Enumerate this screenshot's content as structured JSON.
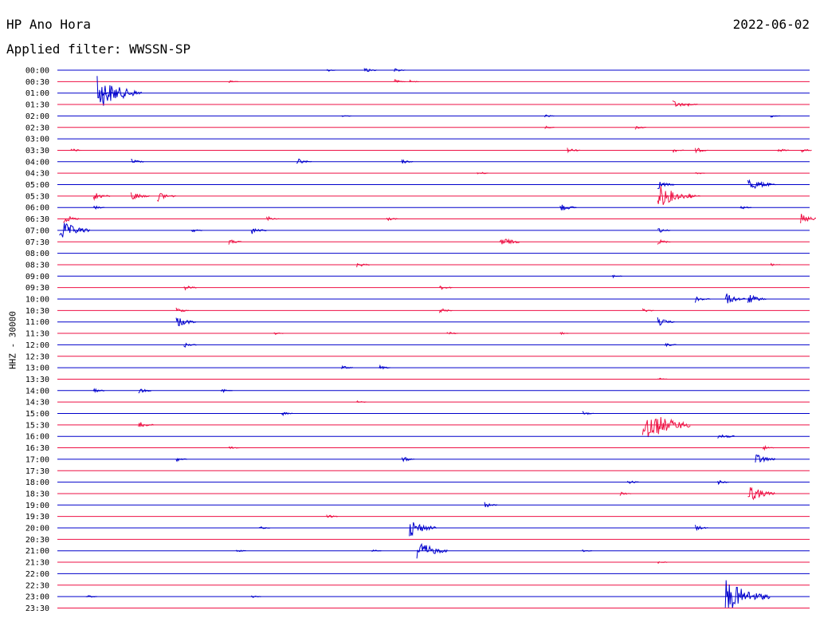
{
  "header": {
    "station": "HP Ano Hora",
    "date": "2022-06-02",
    "filter": "Applied filter: WWSSN-SP",
    "channel": "HHZ - 30000"
  },
  "colors": {
    "even_trace": "#0000cc",
    "odd_trace": "#ee1144"
  },
  "chart_data": {
    "type": "helicorder",
    "title": "HP Ano Hora",
    "date": "2022-06-02",
    "filter": "WWSSN-SP",
    "channel": "HHZ - 30000",
    "row_minutes": 30,
    "traces": [
      {
        "label": "00:00",
        "events": [
          [
            0.36,
            2
          ],
          [
            0.41,
            4
          ],
          [
            0.45,
            3
          ]
        ]
      },
      {
        "label": "00:30",
        "events": [
          [
            0.23,
            2
          ],
          [
            0.45,
            3
          ],
          [
            0.47,
            2
          ]
        ]
      },
      {
        "label": "01:00",
        "events": [
          [
            0.055,
            22
          ],
          [
            0.06,
            4
          ]
        ]
      },
      {
        "label": "01:30",
        "events": [
          [
            0.82,
            6
          ],
          [
            0.84,
            3
          ]
        ]
      },
      {
        "label": "02:00",
        "events": [
          [
            0.38,
            2
          ],
          [
            0.65,
            2
          ],
          [
            0.95,
            2
          ]
        ]
      },
      {
        "label": "02:30",
        "events": [
          [
            0.65,
            2
          ],
          [
            0.77,
            3
          ]
        ]
      },
      {
        "label": "03:00",
        "events": []
      },
      {
        "label": "03:30",
        "events": [
          [
            0.02,
            3
          ],
          [
            0.68,
            4
          ],
          [
            0.82,
            3
          ],
          [
            0.85,
            4
          ],
          [
            0.96,
            3
          ],
          [
            0.99,
            3
          ]
        ]
      },
      {
        "label": "04:00",
        "events": [
          [
            0.1,
            4
          ],
          [
            0.32,
            5
          ],
          [
            0.46,
            3
          ]
        ]
      },
      {
        "label": "04:30",
        "events": [
          [
            0.56,
            3
          ],
          [
            0.85,
            2
          ]
        ]
      },
      {
        "label": "05:00",
        "events": [
          [
            0.8,
            6
          ],
          [
            0.92,
            10
          ],
          [
            0.94,
            4
          ]
        ]
      },
      {
        "label": "05:30",
        "events": [
          [
            0.05,
            6
          ],
          [
            0.1,
            7
          ],
          [
            0.135,
            7
          ],
          [
            0.8,
            16
          ],
          [
            0.84,
            4
          ]
        ]
      },
      {
        "label": "06:00",
        "events": [
          [
            0.05,
            3
          ],
          [
            0.67,
            6
          ],
          [
            0.91,
            3
          ]
        ]
      },
      {
        "label": "06:30",
        "events": [
          [
            0.01,
            6
          ],
          [
            0.28,
            4
          ],
          [
            0.44,
            3
          ],
          [
            0.99,
            7
          ]
        ]
      },
      {
        "label": "07:00",
        "events": [
          [
            0.005,
            14
          ],
          [
            0.18,
            3
          ],
          [
            0.26,
            5
          ],
          [
            0.8,
            4
          ]
        ]
      },
      {
        "label": "07:30",
        "events": [
          [
            0.23,
            4
          ],
          [
            0.59,
            8
          ],
          [
            0.8,
            4
          ]
        ]
      },
      {
        "label": "08:00",
        "events": []
      },
      {
        "label": "08:30",
        "events": [
          [
            0.4,
            4
          ],
          [
            0.95,
            2
          ]
        ]
      },
      {
        "label": "09:00",
        "events": [
          [
            0.74,
            2
          ]
        ]
      },
      {
        "label": "09:30",
        "events": [
          [
            0.17,
            4
          ],
          [
            0.51,
            4
          ]
        ]
      },
      {
        "label": "10:00",
        "events": [
          [
            0.85,
            5
          ],
          [
            0.89,
            8
          ],
          [
            0.92,
            7
          ]
        ]
      },
      {
        "label": "10:30",
        "events": [
          [
            0.16,
            4
          ],
          [
            0.51,
            4
          ],
          [
            0.78,
            3
          ]
        ]
      },
      {
        "label": "11:00",
        "events": [
          [
            0.16,
            8
          ],
          [
            0.8,
            6
          ]
        ]
      },
      {
        "label": "11:30",
        "events": [
          [
            0.29,
            2
          ],
          [
            0.52,
            3
          ],
          [
            0.67,
            2
          ]
        ]
      },
      {
        "label": "12:00",
        "events": [
          [
            0.17,
            4
          ],
          [
            0.81,
            3
          ]
        ]
      },
      {
        "label": "12:30",
        "events": []
      },
      {
        "label": "13:00",
        "events": [
          [
            0.38,
            3
          ],
          [
            0.43,
            3
          ]
        ]
      },
      {
        "label": "13:30",
        "events": [
          [
            0.8,
            2
          ]
        ]
      },
      {
        "label": "14:00",
        "events": [
          [
            0.05,
            3
          ],
          [
            0.11,
            4
          ],
          [
            0.22,
            3
          ]
        ]
      },
      {
        "label": "14:30",
        "events": [
          [
            0.4,
            2
          ]
        ]
      },
      {
        "label": "15:00",
        "events": [
          [
            0.3,
            3
          ],
          [
            0.7,
            3
          ]
        ]
      },
      {
        "label": "15:30",
        "events": [
          [
            0.11,
            5
          ],
          [
            0.78,
            24
          ]
        ]
      },
      {
        "label": "16:00",
        "events": [
          [
            0.88,
            6
          ]
        ]
      },
      {
        "label": "16:30",
        "events": [
          [
            0.23,
            3
          ],
          [
            0.94,
            3
          ]
        ]
      },
      {
        "label": "17:00",
        "events": [
          [
            0.16,
            3
          ],
          [
            0.46,
            4
          ],
          [
            0.93,
            8
          ]
        ]
      },
      {
        "label": "17:30",
        "events": []
      },
      {
        "label": "18:00",
        "events": [
          [
            0.76,
            3
          ],
          [
            0.88,
            3
          ]
        ]
      },
      {
        "label": "18:30",
        "events": [
          [
            0.75,
            3
          ],
          [
            0.92,
            12
          ]
        ]
      },
      {
        "label": "19:00",
        "events": [
          [
            0.57,
            4
          ]
        ]
      },
      {
        "label": "19:30",
        "events": [
          [
            0.36,
            3
          ]
        ]
      },
      {
        "label": "20:00",
        "events": [
          [
            0.27,
            3
          ],
          [
            0.47,
            12
          ],
          [
            0.85,
            4
          ]
        ]
      },
      {
        "label": "20:30",
        "events": []
      },
      {
        "label": "21:00",
        "events": [
          [
            0.24,
            2
          ],
          [
            0.42,
            2
          ],
          [
            0.48,
            14
          ],
          [
            0.7,
            2
          ]
        ]
      },
      {
        "label": "21:30",
        "events": [
          [
            0.8,
            2
          ]
        ]
      },
      {
        "label": "22:00",
        "events": []
      },
      {
        "label": "22:30",
        "events": []
      },
      {
        "label": "23:00",
        "events": [
          [
            0.04,
            3
          ],
          [
            0.26,
            2
          ],
          [
            0.89,
            22
          ]
        ]
      },
      {
        "label": "23:30",
        "events": []
      }
    ]
  }
}
